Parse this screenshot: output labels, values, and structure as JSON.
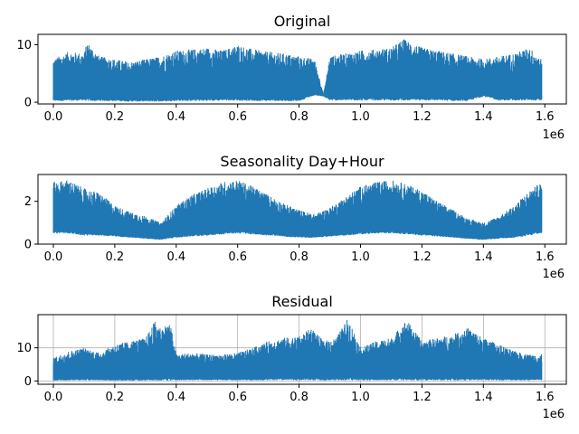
{
  "chart_data": [
    {
      "type": "line",
      "title": "Original",
      "xlim": [
        -50000,
        1670000
      ],
      "ylim": [
        -0.3,
        11.8
      ],
      "x_ticks": [
        0,
        200000,
        400000,
        600000,
        800000,
        1000000,
        1200000,
        1400000,
        1600000
      ],
      "x_tick_labels": [
        "0.0",
        "0.2",
        "0.4",
        "0.6",
        "0.8",
        "1.0",
        "1.2",
        "1.4",
        "1.6"
      ],
      "x_offset_label": "1e6",
      "y_ticks": [
        0,
        10
      ],
      "y_tick_labels": [
        "0",
        "10"
      ],
      "grid": false,
      "color": "#1f77b4",
      "envelope": {
        "x": [
          0,
          50000,
          100000,
          110000,
          150000,
          200000,
          250000,
          300000,
          350000,
          400000,
          450000,
          500000,
          550000,
          600000,
          650000,
          700000,
          750000,
          800000,
          850000,
          880000,
          900000,
          950000,
          1000000,
          1050000,
          1100000,
          1140000,
          1200000,
          1250000,
          1300000,
          1350000,
          1400000,
          1450000,
          1500000,
          1550000,
          1590000
        ],
        "upper": [
          7.5,
          8.8,
          8.5,
          10.5,
          8.0,
          7.5,
          7.0,
          7.5,
          8.0,
          9.0,
          9.2,
          9.5,
          9.0,
          10.0,
          9.2,
          8.8,
          8.5,
          8.0,
          7.5,
          1.5,
          8.0,
          8.5,
          9.0,
          9.2,
          9.5,
          11.0,
          9.5,
          9.0,
          8.5,
          8.0,
          7.5,
          8.0,
          8.5,
          9.5,
          7.5
        ],
        "lower": [
          0.2,
          0.2,
          0.3,
          0.2,
          0.2,
          0.2,
          0.1,
          0.1,
          0.1,
          0.2,
          0.2,
          0.2,
          0.3,
          0.3,
          0.2,
          0.2,
          0.2,
          0.2,
          1.2,
          1.0,
          0.3,
          0.3,
          0.3,
          0.3,
          0.3,
          0.3,
          0.3,
          0.3,
          0.2,
          0.2,
          1.0,
          0.3,
          0.3,
          0.3,
          0.3
        ]
      }
    },
    {
      "type": "line",
      "title": "Seasonality Day+Hour",
      "xlim": [
        -50000,
        1670000
      ],
      "ylim": [
        0,
        3.25
      ],
      "x_ticks": [
        0,
        200000,
        400000,
        600000,
        800000,
        1000000,
        1200000,
        1400000,
        1600000
      ],
      "x_tick_labels": [
        "0.0",
        "0.2",
        "0.4",
        "0.6",
        "0.8",
        "1.0",
        "1.2",
        "1.4",
        "1.6"
      ],
      "x_offset_label": "1e6",
      "y_ticks": [
        0,
        2
      ],
      "y_tick_labels": [
        "0",
        "2"
      ],
      "grid": false,
      "color": "#1f77b4",
      "envelope": {
        "x": [
          0,
          50000,
          100000,
          150000,
          200000,
          250000,
          300000,
          350000,
          400000,
          450000,
          500000,
          550000,
          600000,
          650000,
          700000,
          750000,
          800000,
          850000,
          900000,
          950000,
          1000000,
          1050000,
          1100000,
          1150000,
          1200000,
          1250000,
          1300000,
          1350000,
          1400000,
          1450000,
          1500000,
          1550000,
          1590000
        ],
        "upper": [
          2.9,
          3.0,
          2.6,
          2.4,
          1.8,
          1.5,
          1.3,
          1.0,
          1.8,
          2.3,
          2.6,
          2.9,
          3.0,
          2.7,
          2.3,
          1.9,
          1.6,
          1.4,
          1.7,
          2.2,
          2.7,
          2.9,
          3.0,
          2.8,
          2.5,
          2.0,
          1.6,
          1.2,
          1.0,
          1.3,
          1.8,
          2.5,
          2.9
        ],
        "lower": [
          0.5,
          0.5,
          0.4,
          0.4,
          0.35,
          0.3,
          0.25,
          0.2,
          0.3,
          0.35,
          0.4,
          0.45,
          0.5,
          0.45,
          0.4,
          0.35,
          0.3,
          0.3,
          0.35,
          0.4,
          0.45,
          0.5,
          0.5,
          0.45,
          0.4,
          0.35,
          0.3,
          0.25,
          0.2,
          0.25,
          0.3,
          0.4,
          0.5
        ]
      }
    },
    {
      "type": "line",
      "title": "Residual",
      "xlim": [
        -50000,
        1670000
      ],
      "ylim": [
        -1,
        20
      ],
      "x_ticks": [
        0,
        200000,
        400000,
        600000,
        800000,
        1000000,
        1200000,
        1400000,
        1600000
      ],
      "x_tick_labels": [
        "0.0",
        "0.2",
        "0.4",
        "0.6",
        "0.8",
        "1.0",
        "1.2",
        "1.4",
        "1.6"
      ],
      "x_offset_label": "1e6",
      "y_ticks": [
        0,
        10
      ],
      "y_tick_labels": [
        "0",
        "10"
      ],
      "grid": true,
      "color": "#1f77b4",
      "envelope": {
        "x": [
          0,
          50000,
          100000,
          150000,
          200000,
          250000,
          300000,
          330000,
          350000,
          380000,
          400000,
          450000,
          500000,
          550000,
          600000,
          650000,
          700000,
          750000,
          800000,
          840000,
          880000,
          920000,
          960000,
          1000000,
          1050000,
          1100000,
          1150000,
          1200000,
          1250000,
          1300000,
          1350000,
          1400000,
          1450000,
          1500000,
          1550000,
          1590000
        ],
        "upper": [
          7.0,
          9.0,
          10.0,
          8.5,
          11.0,
          12.0,
          13.0,
          18.0,
          16.0,
          17.5,
          8.0,
          8.5,
          8.0,
          8.0,
          8.5,
          10.0,
          12.0,
          13.0,
          13.5,
          16.0,
          12.0,
          13.0,
          19.0,
          10.0,
          12.0,
          13.0,
          18.5,
          12.0,
          13.0,
          14.0,
          16.0,
          13.0,
          11.0,
          9.0,
          8.0,
          8.0
        ],
        "lower": [
          0.1,
          0.2,
          0.2,
          0.2,
          0.1,
          0.1,
          0.1,
          0.1,
          0.1,
          0.1,
          0.2,
          0.2,
          0.2,
          0.2,
          0.2,
          0.2,
          0.2,
          0.2,
          0.2,
          0.2,
          0.2,
          0.2,
          0.2,
          0.2,
          0.2,
          0.2,
          0.2,
          0.2,
          0.2,
          0.2,
          0.2,
          0.2,
          0.2,
          0.2,
          0.2,
          0.2
        ]
      }
    }
  ]
}
